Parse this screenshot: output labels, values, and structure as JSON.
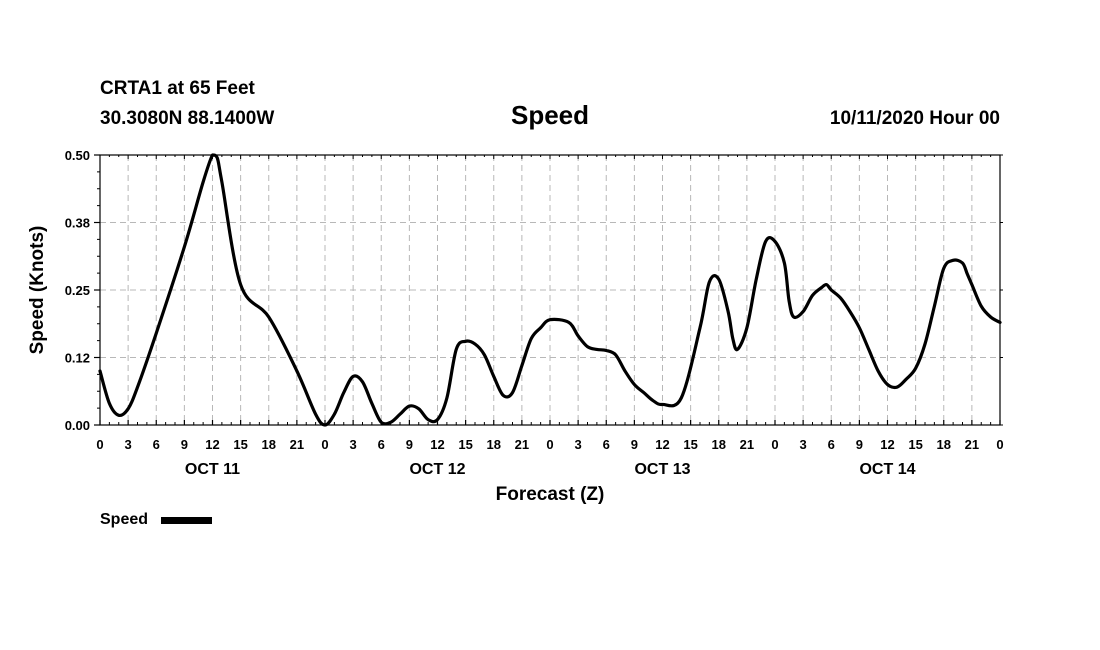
{
  "header": {
    "station": "CRTA1 at 65 Feet",
    "coords": "30.3080N 88.1400W",
    "title": "Speed",
    "run": "10/11/2020 Hour 00"
  },
  "chart_data": {
    "type": "line",
    "title": "Speed",
    "xlabel": "Forecast (Z)",
    "ylabel": "Speed (Knots)",
    "x_unit": "hours since 10/11/2020 00Z",
    "xlim": [
      0,
      96
    ],
    "ylim": [
      0,
      0.5
    ],
    "y_ticks": [
      "0.00",
      "0.12",
      "0.25",
      "0.38",
      "0.50"
    ],
    "y_tick_values": [
      0,
      0.125,
      0.25,
      0.375,
      0.5
    ],
    "x_tick_labels": [
      "0",
      "3",
      "6",
      "9",
      "12",
      "15",
      "18",
      "21",
      "0",
      "3",
      "6",
      "9",
      "12",
      "15",
      "18",
      "21",
      "0",
      "3",
      "6",
      "9",
      "12",
      "15",
      "18",
      "21",
      "0",
      "3",
      "6",
      "9",
      "12",
      "15",
      "18",
      "21",
      "0"
    ],
    "day_labels": [
      {
        "label": "OCT 11",
        "hour": 12
      },
      {
        "label": "OCT 12",
        "hour": 36
      },
      {
        "label": "OCT 13",
        "hour": 60
      },
      {
        "label": "OCT 14",
        "hour": 84
      }
    ],
    "grid": true,
    "legend": {
      "label": "Speed",
      "position": "bottom-left"
    },
    "series": [
      {
        "name": "Speed",
        "color": "#000000",
        "x": [
          0,
          1,
          2,
          3,
          4,
          6,
          9,
          11,
          12,
          12.5,
          13,
          15,
          18,
          21,
          23,
          24,
          25,
          26,
          27,
          28,
          29,
          30,
          31,
          32,
          33,
          34,
          35,
          36,
          37,
          38,
          39,
          40,
          41,
          42,
          43,
          44,
          45,
          46,
          47,
          48,
          50,
          51,
          52,
          53,
          54,
          55,
          56,
          57,
          58,
          59,
          60,
          62,
          64,
          65,
          66,
          67,
          67.5,
          68,
          69,
          70,
          71,
          72,
          73,
          73.5,
          74,
          75,
          76,
          77,
          77.5,
          78,
          79,
          80,
          81,
          82,
          83,
          84,
          85,
          86,
          87,
          88,
          89,
          90,
          91,
          92,
          92.5,
          93,
          94,
          95,
          96
        ],
        "y": [
          0.1,
          0.04,
          0.018,
          0.03,
          0.07,
          0.17,
          0.33,
          0.45,
          0.5,
          0.495,
          0.45,
          0.26,
          0.2,
          0.1,
          0.02,
          0.0,
          0.02,
          0.06,
          0.09,
          0.08,
          0.04,
          0.005,
          0.005,
          0.02,
          0.035,
          0.03,
          0.01,
          0.01,
          0.05,
          0.14,
          0.155,
          0.15,
          0.13,
          0.09,
          0.055,
          0.06,
          0.11,
          0.16,
          0.18,
          0.195,
          0.19,
          0.165,
          0.145,
          0.14,
          0.138,
          0.13,
          0.1,
          0.075,
          0.06,
          0.045,
          0.038,
          0.05,
          0.18,
          0.265,
          0.27,
          0.21,
          0.16,
          0.14,
          0.18,
          0.27,
          0.34,
          0.34,
          0.3,
          0.23,
          0.2,
          0.21,
          0.24,
          0.255,
          0.26,
          0.25,
          0.235,
          0.21,
          0.18,
          0.14,
          0.1,
          0.075,
          0.07,
          0.085,
          0.105,
          0.15,
          0.22,
          0.29,
          0.305,
          0.3,
          0.28,
          0.26,
          0.22,
          0.2,
          0.19
        ]
      }
    ]
  }
}
